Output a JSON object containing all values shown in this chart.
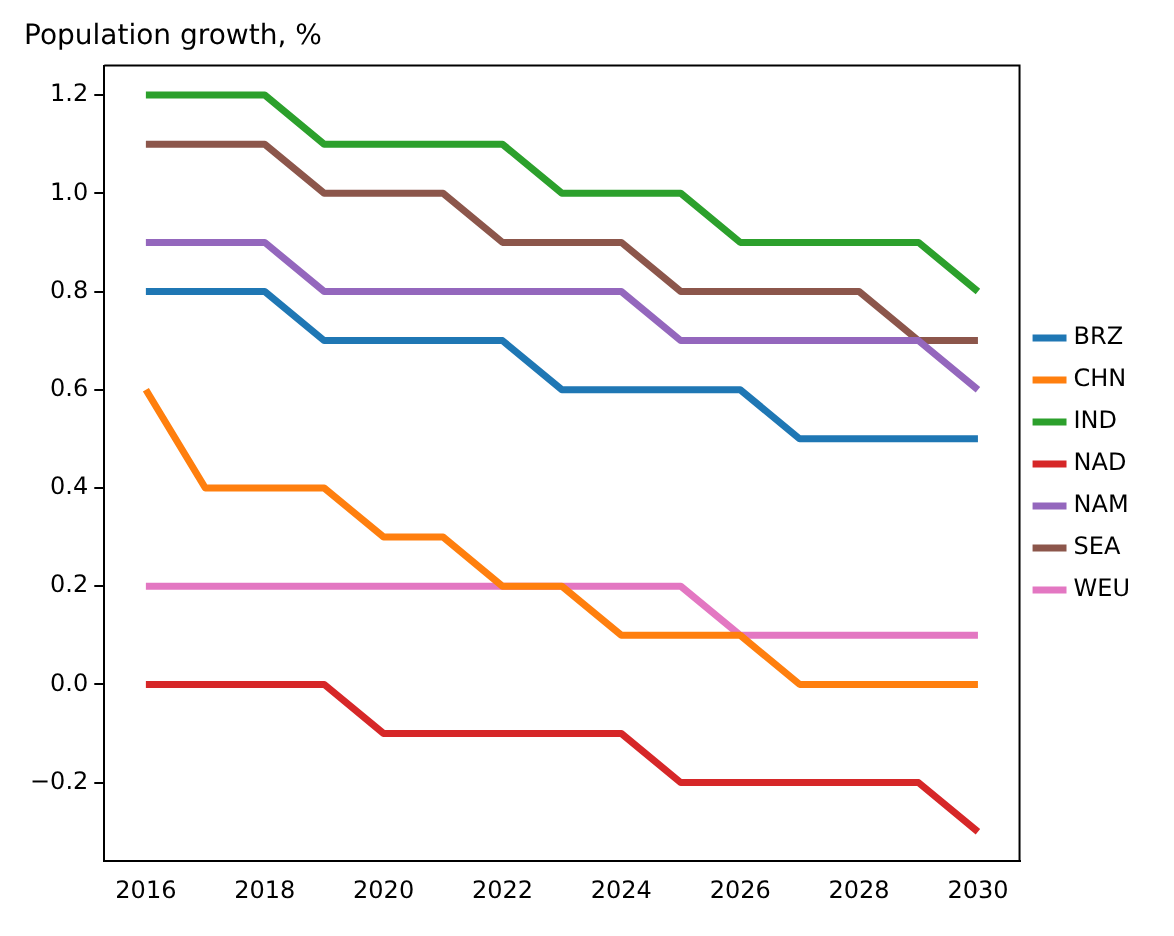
{
  "chart_data": {
    "type": "line",
    "title": "Population growth, %",
    "x": [
      2016,
      2017,
      2018,
      2019,
      2020,
      2021,
      2022,
      2023,
      2024,
      2025,
      2026,
      2027,
      2028,
      2029,
      2030
    ],
    "series": [
      {
        "name": "BRZ",
        "color": "#1f77b4",
        "values": [
          0.8,
          0.8,
          0.8,
          0.7,
          0.7,
          0.7,
          0.7,
          0.6,
          0.6,
          0.6,
          0.6,
          0.5,
          0.5,
          0.5,
          0.5
        ]
      },
      {
        "name": "CHN",
        "color": "#ff7f0e",
        "values": [
          0.6,
          0.4,
          0.4,
          0.4,
          0.3,
          0.3,
          0.2,
          0.2,
          0.1,
          0.1,
          0.1,
          0.0,
          0.0,
          0.0,
          0.0
        ]
      },
      {
        "name": "IND",
        "color": "#2ca02c",
        "values": [
          1.2,
          1.2,
          1.2,
          1.1,
          1.1,
          1.1,
          1.1,
          1.0,
          1.0,
          1.0,
          0.9,
          0.9,
          0.9,
          0.9,
          0.8
        ]
      },
      {
        "name": "NAD",
        "color": "#d62728",
        "values": [
          0.0,
          0.0,
          0.0,
          0.0,
          -0.1,
          -0.1,
          -0.1,
          -0.1,
          -0.1,
          -0.2,
          -0.2,
          -0.2,
          -0.2,
          -0.2,
          -0.3
        ]
      },
      {
        "name": "NAM",
        "color": "#9467bd",
        "values": [
          0.9,
          0.9,
          0.9,
          0.8,
          0.8,
          0.8,
          0.8,
          0.8,
          0.8,
          0.7,
          0.7,
          0.7,
          0.7,
          0.7,
          0.6
        ]
      },
      {
        "name": "SEA",
        "color": "#8c564b",
        "values": [
          1.1,
          1.1,
          1.1,
          1.0,
          1.0,
          1.0,
          0.9,
          0.9,
          0.9,
          0.8,
          0.8,
          0.8,
          0.8,
          0.7,
          0.7
        ]
      },
      {
        "name": "WEU",
        "color": "#e377c2",
        "values": [
          0.2,
          0.2,
          0.2,
          0.2,
          0.2,
          0.2,
          0.2,
          0.2,
          0.2,
          0.2,
          0.1,
          0.1,
          0.1,
          0.1,
          0.1
        ]
      }
    ],
    "xlim": [
      2015.3,
      2030.7
    ],
    "xticks": [
      2016,
      2018,
      2020,
      2022,
      2024,
      2026,
      2028,
      2030
    ],
    "ylim": [
      -0.36,
      1.26
    ],
    "yticks": [
      {
        "value": -0.2,
        "label": "−0.2"
      },
      {
        "value": 0,
        "label": "0.0"
      },
      {
        "value": 0.2,
        "label": "0.2"
      },
      {
        "value": 0.4,
        "label": "0.4"
      },
      {
        "value": 0.6,
        "label": "0.6"
      },
      {
        "value": 0.8,
        "label": "0.8"
      },
      {
        "value": 1.0,
        "label": "1.0"
      },
      {
        "value": 1.2,
        "label": "1.2"
      }
    ],
    "grid": false,
    "legend": "right",
    "marker": "none",
    "line_style": "solid"
  }
}
